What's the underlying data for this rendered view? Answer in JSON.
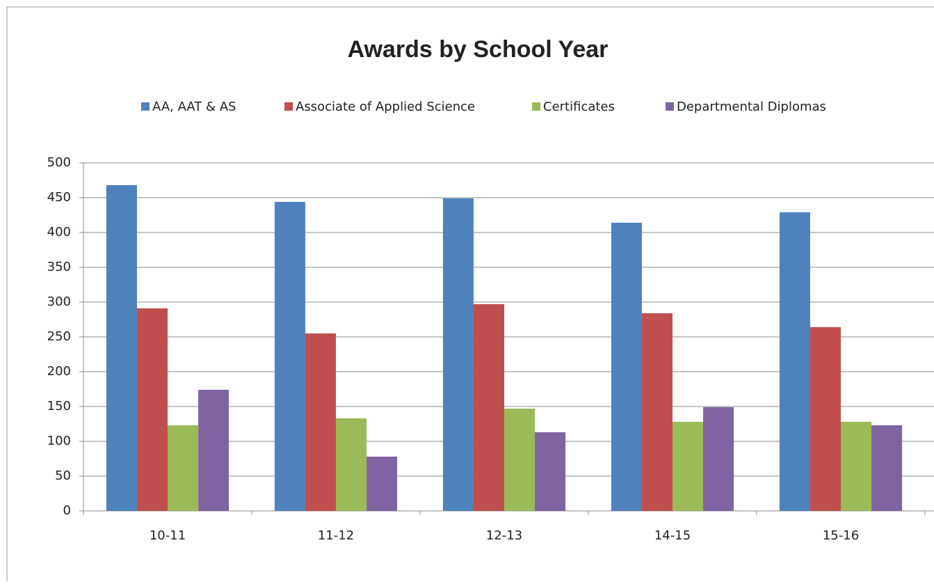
{
  "chart_data": {
    "type": "bar",
    "title": "Awards by School Year",
    "categories": [
      "10-11",
      "11-12",
      "12-13",
      "14-15",
      "15-16"
    ],
    "series": [
      {
        "name": "AA, AAT & AS",
        "color": "#4f81bd",
        "values": [
          468,
          444,
          449,
          414,
          429
        ]
      },
      {
        "name": "Associate of Applied Science",
        "color": "#c0504d",
        "values": [
          291,
          255,
          297,
          284,
          264
        ]
      },
      {
        "name": "Certificates",
        "color": "#9bbb59",
        "values": [
          123,
          133,
          147,
          128,
          128
        ]
      },
      {
        "name": "Departmental Diplomas",
        "color": "#8064a2",
        "values": [
          174,
          78,
          113,
          149,
          123
        ]
      }
    ],
    "ylim": [
      0,
      500
    ],
    "yticks": [
      0,
      50,
      100,
      150,
      200,
      250,
      300,
      350,
      400,
      450,
      500
    ],
    "grid": true,
    "legend": "top"
  }
}
